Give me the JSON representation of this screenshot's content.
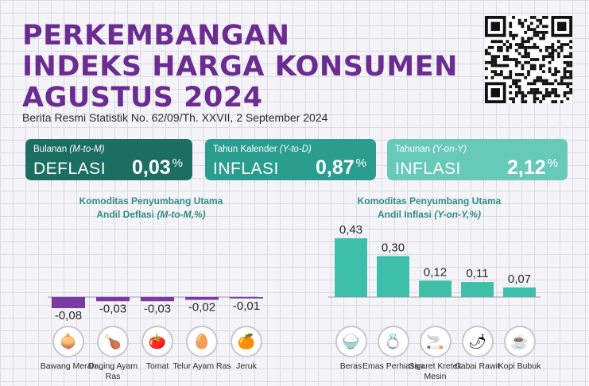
{
  "header": {
    "title_line1": "PERKEMBANGAN",
    "title_line2": "INDEKS HARGA KONSUMEN",
    "title_line3": "AGUSTUS 2024",
    "subtitle": "Berita Resmi Statistik No. 62/09/Th. XXVII, 2 September 2024"
  },
  "cards": [
    {
      "label": "Bulanan",
      "label_italic": "(M-to-M)",
      "kind": "DEFLASI",
      "value": "0,03",
      "unit": "%",
      "color": "#1c6e62"
    },
    {
      "label": "Tahun Kalender",
      "label_italic": "(Y-to-D)",
      "kind": "INFLASI",
      "value": "0,87",
      "unit": "%",
      "color": "#2a9d8f"
    },
    {
      "label": "Tahunan",
      "label_italic": "(Y-on-Y)",
      "kind": "INFLASI",
      "value": "2,12",
      "unit": "%",
      "color": "#67c9b8"
    }
  ],
  "chart_data": [
    {
      "type": "bar",
      "title_line1": "Komoditas Penyumbang Utama",
      "title_line2": "Andil Deflasi",
      "title_italic": "(M-to-M,%)",
      "categories": [
        "Bawang Merah",
        "Daging Ayam Ras",
        "Tomat",
        "Telur Ayam Ras",
        "Jeruk"
      ],
      "values": [
        -0.08,
        -0.03,
        -0.03,
        -0.02,
        -0.01
      ],
      "labels": [
        "-0,08",
        "-0,03",
        "-0,03",
        "-0,02",
        "-0,01"
      ],
      "icons": [
        "onion-icon",
        "chicken-icon",
        "tomato-icon",
        "egg-basket-icon",
        "orange-icon"
      ],
      "color": "#7b3aa3"
    },
    {
      "type": "bar",
      "title_line1": "Komoditas Penyumbang Utama",
      "title_line2": "Andil Inflasi",
      "title_italic": "(Y-on-Y,%)",
      "categories": [
        "Beras",
        "Emas Perhiasan",
        "Sigaret Kretek Mesin",
        "Cabai Rawit",
        "Kopi Bubuk"
      ],
      "values": [
        0.43,
        0.3,
        0.12,
        0.11,
        0.07
      ],
      "labels": [
        "0,43",
        "0,30",
        "0,12",
        "0,11",
        "0,07"
      ],
      "icons": [
        "rice-bowl-icon",
        "jewelry-icon",
        "cigarette-icon",
        "chili-icon",
        "coffee-icon"
      ],
      "color": "#3dbfa9"
    }
  ]
}
